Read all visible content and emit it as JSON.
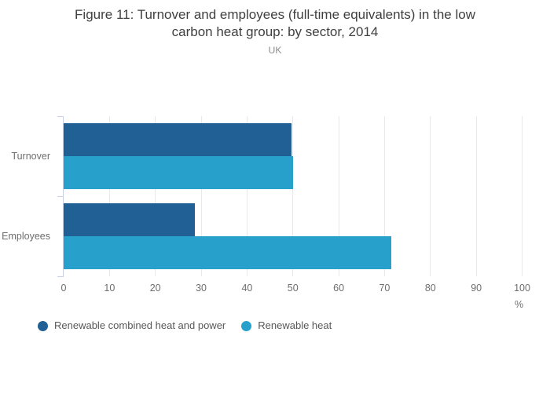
{
  "title": {
    "lines": [
      "Figure 11: Turnover and employees (full-time equivalents) in the low",
      "carbon heat group: by sector, 2014"
    ],
    "subtitle": "UK"
  },
  "chart_data": {
    "type": "bar",
    "orientation": "horizontal",
    "title": "Figure 11: Turnover and employees (full-time equivalents) in the low carbon heat group: by sector, 2014",
    "subtitle": "UK",
    "categories": [
      "Turnover",
      "Employees"
    ],
    "series": [
      {
        "name": "Renewable combined heat and power",
        "color": "#206095",
        "values": [
          49.7,
          28.6
        ]
      },
      {
        "name": "Renewable heat",
        "color": "#27A0CC",
        "values": [
          50.1,
          71.4
        ]
      }
    ],
    "xlabel": "%",
    "xlim": [
      0,
      100
    ],
    "xticks": [
      0,
      10,
      20,
      30,
      40,
      50,
      60,
      70,
      80,
      90,
      100
    ],
    "grid": true,
    "legend_position": "bottom-left",
    "colors": {
      "gridline": "#e9e9e9",
      "category_axis": "#c7d1e3",
      "tick_label": "#6e6e6e",
      "title_text": "#404040",
      "subtitle_text": "#8c8c8c",
      "legend_text": "#585858"
    }
  }
}
